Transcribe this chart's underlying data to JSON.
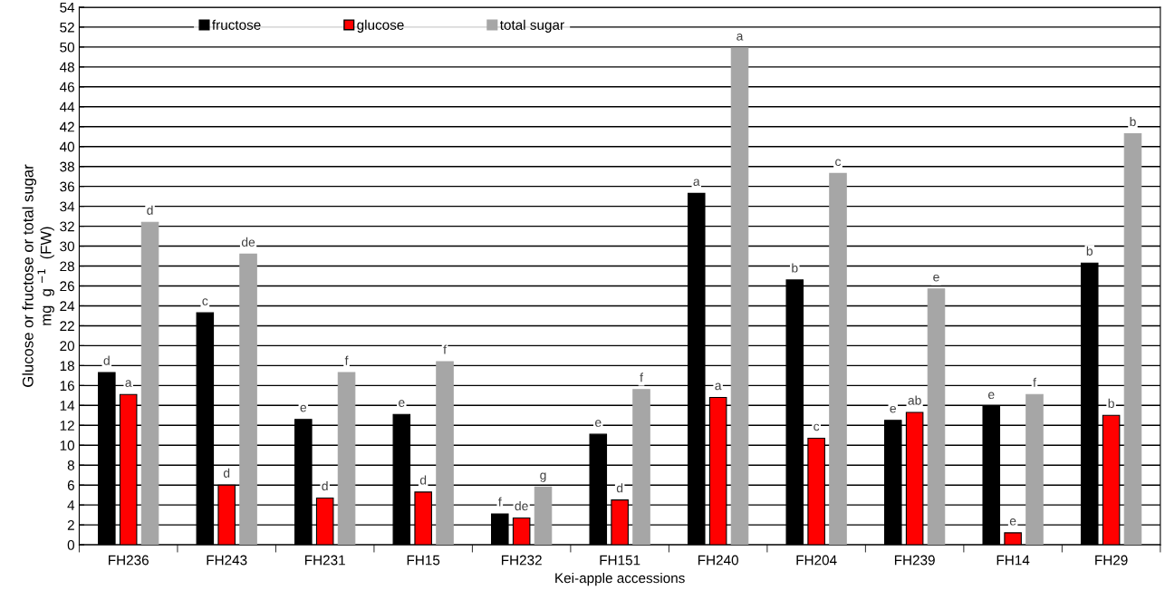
{
  "chart_data": {
    "type": "bar",
    "xlabel": "Kei-apple accessions",
    "ylabel": "Glucose or fructose or total sugar\nmg  g $^{−1}$  (FW)",
    "categories": [
      "FH236",
      "FH243",
      "FH231",
      "FH15",
      "FH232",
      "FH151",
      "FH240",
      "FH204",
      "FH239",
      "FH14",
      "FH29"
    ],
    "series": [
      {
        "name": "fructose",
        "color": "#000000",
        "values": [
          17.3,
          23.3,
          12.6,
          13.1,
          3.1,
          11.1,
          35.3,
          26.6,
          12.5,
          13.9,
          28.3
        ],
        "value_labels": [
          "d",
          "c",
          "e",
          "e",
          "f",
          "e",
          "a",
          "b",
          "e",
          "e",
          "b"
        ]
      },
      {
        "name": "glucose",
        "color": "#ff0000",
        "values": [
          15.1,
          6.0,
          4.7,
          5.3,
          2.7,
          4.5,
          14.8,
          10.7,
          13.3,
          1.2,
          13.0
        ],
        "value_labels": [
          "a",
          "d",
          "d",
          "d",
          "de",
          "d",
          "a",
          "c",
          "ab",
          "e",
          "b"
        ]
      },
      {
        "name": "total sugar",
        "color": "#a6a6a6",
        "values": [
          32.4,
          29.2,
          17.3,
          18.4,
          5.8,
          15.6,
          49.9,
          37.3,
          25.7,
          15.1,
          41.3
        ],
        "value_labels": [
          "d",
          "de",
          "f",
          "f",
          "g",
          "f",
          "a",
          "c",
          "e",
          "f",
          "b"
        ]
      }
    ],
    "ylim": [
      0,
      54
    ],
    "yticks": [
      0,
      2,
      4,
      6,
      8,
      10,
      12,
      14,
      16,
      18,
      20,
      22,
      24,
      26,
      28,
      30,
      32,
      34,
      36,
      38,
      40,
      42,
      44,
      46,
      48,
      50,
      52,
      54
    ],
    "grid": "y",
    "legend": "top"
  }
}
